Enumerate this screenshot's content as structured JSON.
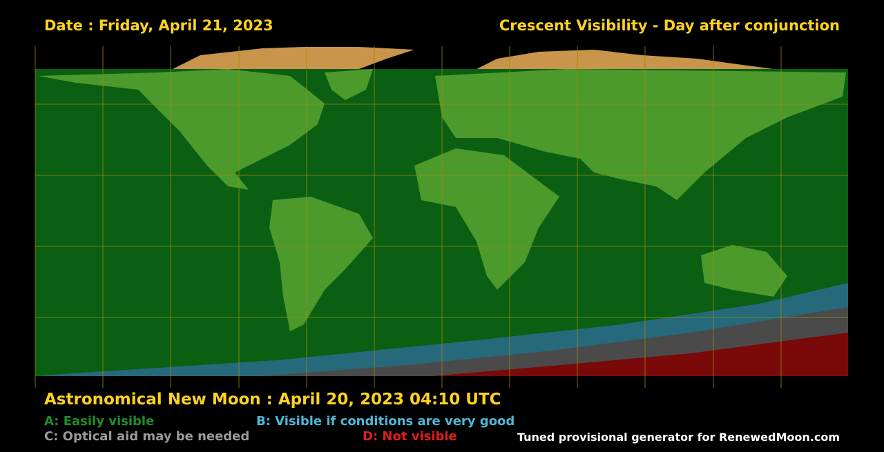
{
  "header": {
    "date": "Date : Friday, April 21, 2023",
    "title": "Crescent Visibility - Day after conjunction"
  },
  "footer": {
    "new_moon": "Astronomical New Moon : April 20, 2023 04:10 UTC",
    "legend": [
      "A: Easily visible",
      "B: Visible if conditions are very good",
      "C: Optical aid may be needed",
      "D: Not visible"
    ],
    "credit": "Tuned provisional generator for RenewedMoon.com"
  }
}
